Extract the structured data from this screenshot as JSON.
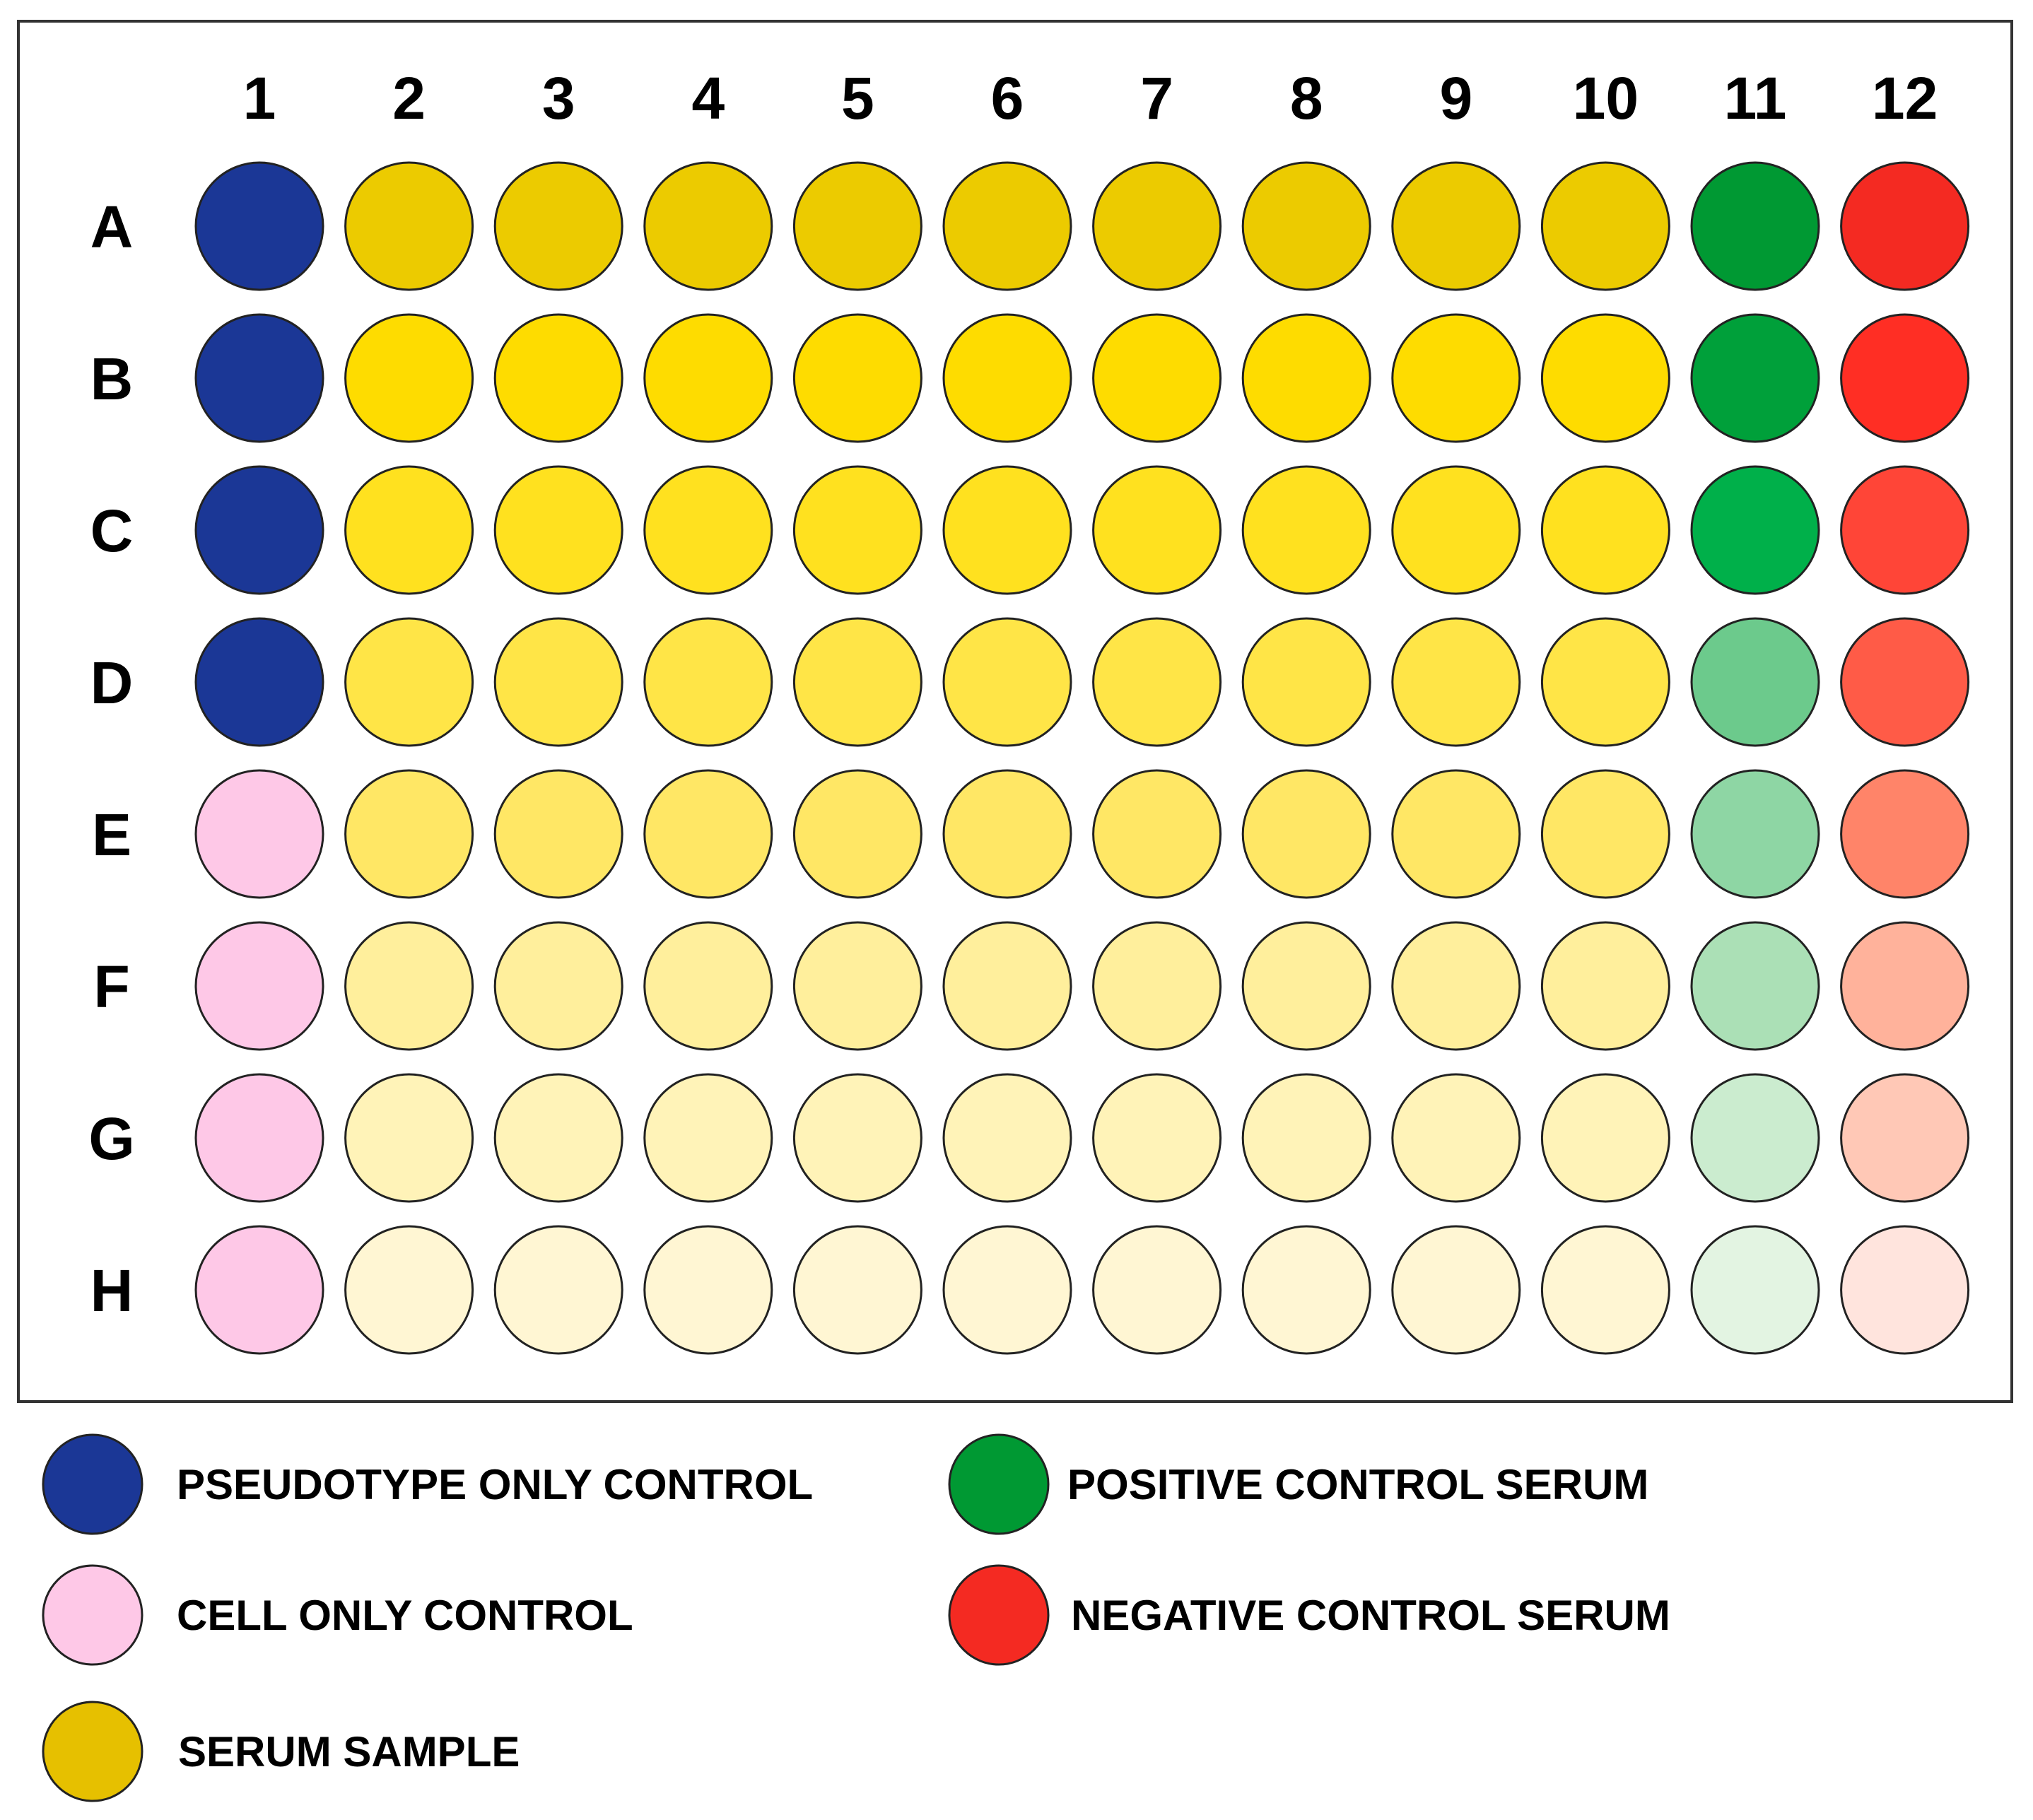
{
  "plate": {
    "columns": [
      "1",
      "2",
      "3",
      "4",
      "5",
      "6",
      "7",
      "8",
      "9",
      "10",
      "11",
      "12"
    ],
    "rows": [
      "A",
      "B",
      "C",
      "D",
      "E",
      "F",
      "G",
      "H"
    ],
    "well_colors": [
      [
        "#1b3796",
        "#eccb00",
        "#eccb00",
        "#eccb00",
        "#eccb00",
        "#eccb00",
        "#eccb00",
        "#eccb00",
        "#eccb00",
        "#eccb00",
        "#009933",
        "#f42a22"
      ],
      [
        "#1b3796",
        "#fedc00",
        "#fedc00",
        "#fedc00",
        "#fedc00",
        "#fedc00",
        "#fedc00",
        "#fedc00",
        "#fedc00",
        "#fedc00",
        "#00a03a",
        "#ff2e24"
      ],
      [
        "#1b3796",
        "#ffe11f",
        "#ffe11f",
        "#ffe11f",
        "#ffe11f",
        "#ffe11f",
        "#ffe11f",
        "#ffe11f",
        "#ffe11f",
        "#ffe11f",
        "#00b04a",
        "#ff4537"
      ],
      [
        "#1b3796",
        "#ffe547",
        "#ffe547",
        "#ffe547",
        "#ffe547",
        "#ffe547",
        "#ffe547",
        "#ffe547",
        "#ffe547",
        "#ffe547",
        "#6cca8c",
        "#ff5b47"
      ],
      [
        "#fec8e7",
        "#ffe765",
        "#ffe765",
        "#ffe765",
        "#ffe765",
        "#ffe765",
        "#ffe765",
        "#ffe765",
        "#ffe765",
        "#ffe765",
        "#8ed6a4",
        "#ff8469"
      ],
      [
        "#fec8e7",
        "#ffef9c",
        "#ffef9c",
        "#ffef9c",
        "#ffef9c",
        "#ffef9c",
        "#ffef9c",
        "#ffef9c",
        "#ffef9c",
        "#ffef9c",
        "#abe0b6",
        "#ffb29b"
      ],
      [
        "#fec8e7",
        "#fff3b8",
        "#fff3b8",
        "#fff3b8",
        "#fff3b8",
        "#fff3b8",
        "#fff3b8",
        "#fff3b8",
        "#fff3b8",
        "#fff3b8",
        "#cbeccf",
        "#ffc8b6"
      ],
      [
        "#fec8e7",
        "#fff6d3",
        "#fff6d3",
        "#fff6d3",
        "#fff6d3",
        "#fff6d3",
        "#fff6d3",
        "#fff6d3",
        "#fff6d3",
        "#fff6d3",
        "#e3f4e2",
        "#ffe4dd"
      ]
    ]
  },
  "legend": [
    {
      "label": "PSEUDOTYPE ONLY CONTROL",
      "color": "#1b3796"
    },
    {
      "label": "POSITIVE CONTROL SERUM",
      "color": "#009933"
    },
    {
      "label": "CELL ONLY CONTROL",
      "color": "#fec8e7"
    },
    {
      "label": "NEGATIVE CONTROL SERUM",
      "color": "#f42a22"
    },
    {
      "label": "SERUM SAMPLE",
      "color": "#e6c000"
    }
  ]
}
